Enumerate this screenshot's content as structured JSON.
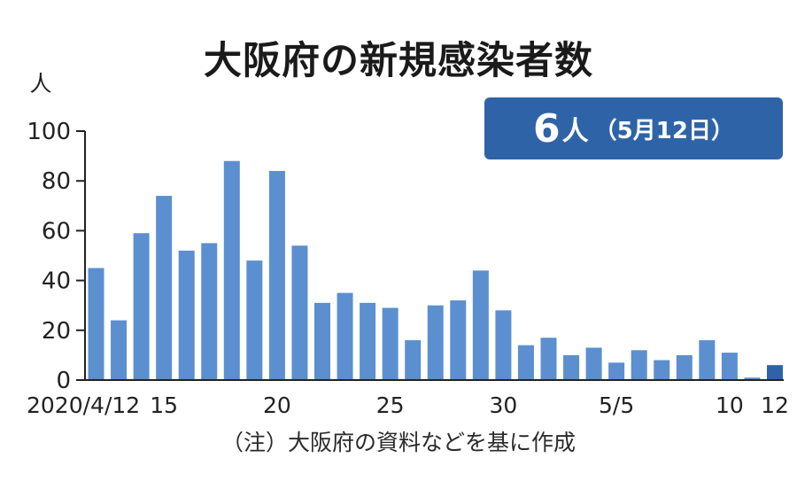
{
  "title": "大阪府の新規感染者数",
  "highlight": {
    "value": "6",
    "unit": "人",
    "date": "（5月12日）"
  },
  "note": "（注）大阪府の資料などを基に作成",
  "colors": {
    "bar": "#5b8fd0",
    "highlight_bar": "#2e64a7",
    "axis": "#222222",
    "badge": "#2e64a7"
  },
  "chart_data": {
    "type": "bar",
    "title": "大阪府の新規感染者数",
    "ylabel": "人",
    "xlabel": "",
    "ylim": [
      0,
      100
    ],
    "yticks": [
      0,
      20,
      40,
      60,
      80,
      100
    ],
    "grid": false,
    "categories": [
      "4/12",
      "4/13",
      "4/14",
      "4/15",
      "4/16",
      "4/17",
      "4/18",
      "4/19",
      "4/20",
      "4/21",
      "4/22",
      "4/23",
      "4/24",
      "4/25",
      "4/26",
      "4/27",
      "4/28",
      "4/29",
      "4/30",
      "5/1",
      "5/2",
      "5/3",
      "5/4",
      "5/5",
      "5/6",
      "5/7",
      "5/8",
      "5/9",
      "5/10",
      "5/11",
      "5/12"
    ],
    "values": [
      45,
      24,
      59,
      74,
      52,
      55,
      88,
      48,
      84,
      54,
      31,
      35,
      31,
      29,
      16,
      30,
      32,
      44,
      28,
      14,
      17,
      10,
      13,
      7,
      12,
      8,
      10,
      16,
      11,
      1,
      6
    ],
    "highlight_index": 30,
    "xtick_labels": [
      {
        "index": 0,
        "label": "2020/4/12"
      },
      {
        "index": 3,
        "label": "15"
      },
      {
        "index": 8,
        "label": "20"
      },
      {
        "index": 13,
        "label": "25"
      },
      {
        "index": 18,
        "label": "30"
      },
      {
        "index": 23,
        "label": "5/5"
      },
      {
        "index": 28,
        "label": "10"
      },
      {
        "index": 30,
        "label": "12"
      }
    ]
  }
}
